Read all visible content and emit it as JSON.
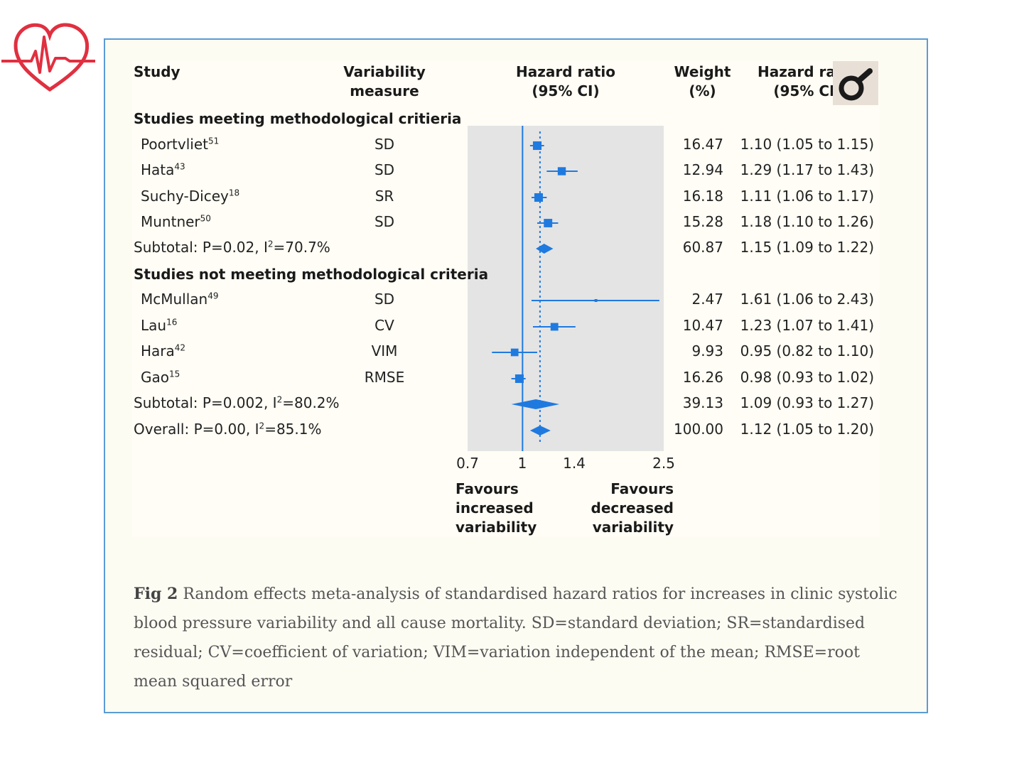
{
  "header": {
    "study": "Study",
    "measure_1": "Variability",
    "measure_2": "measure",
    "hr_1": "Hazard ratio",
    "hr_2": "(95% CI)",
    "weight_1": "Weight",
    "weight_2": "(%)",
    "hrtext_1": "Hazard ratio",
    "hrtext_2": "(95% CI)"
  },
  "sections": [
    {
      "title": "Studies meeting methodological critieria"
    },
    {
      "title": "Studies not meeting methodological criteria"
    }
  ],
  "rows": [
    {
      "name": "Poortvliet",
      "sup": "51",
      "measure": "SD",
      "weight": "16.47",
      "hrtext": "1.10 (1.05 to 1.15)"
    },
    {
      "name": "Hata",
      "sup": "43",
      "measure": "SD",
      "weight": "12.94",
      "hrtext": "1.29 (1.17 to 1.43)"
    },
    {
      "name": "Suchy-Dicey",
      "sup": "18",
      "measure": "SR",
      "weight": "16.18",
      "hrtext": "1.11 (1.06 to 1.17)"
    },
    {
      "name": "Muntner",
      "sup": "50",
      "measure": "SD",
      "weight": "15.28",
      "hrtext": "1.18 (1.10 to 1.26)"
    },
    {
      "name": "Subtotal: P=0.02, I",
      "sup": "2",
      "tail": "=70.7%",
      "measure": "",
      "weight": "60.87",
      "hrtext": "1.15 (1.09 to 1.22)"
    },
    {
      "name": "McMullan",
      "sup": "49",
      "measure": "SD",
      "weight": "2.47",
      "hrtext": "1.61 (1.06 to 2.43)"
    },
    {
      "name": "Lau",
      "sup": "16",
      "measure": "CV",
      "weight": "10.47",
      "hrtext": "1.23 (1.07 to 1.41)"
    },
    {
      "name": "Hara",
      "sup": "42",
      "measure": "VIM",
      "weight": "9.93",
      "hrtext": "0.95 (0.82 to 1.10)"
    },
    {
      "name": "Gao",
      "sup": "15",
      "measure": "RMSE",
      "weight": "16.26",
      "hrtext": "0.98 (0.93 to 1.02)"
    },
    {
      "name": "Subtotal: P=0.002, I",
      "sup": "2",
      "tail": "=80.2%",
      "measure": "",
      "weight": "39.13",
      "hrtext": "1.09 (0.93 to 1.27)"
    },
    {
      "name": "Overall: P=0.00, I",
      "sup": "2",
      "tail": "=85.1%",
      "measure": "",
      "weight": "100.00",
      "hrtext": "1.12 (1.05 to 1.20)"
    }
  ],
  "axis": {
    "ticks": [
      "0.7",
      "1",
      "1.4",
      "2.5"
    ],
    "left_1": "Favours",
    "left_2": "increased",
    "left_3": "variability",
    "right_1": "Favours",
    "right_2": "decreased",
    "right_3": "variability"
  },
  "caption": {
    "fig": "Fig 2",
    "text": "Random effects meta-analysis of standardised hazard ratios for increases in clinic systolic blood pressure variability and all cause mortality. SD=standard deviation; SR=standardised residual; CV=coefficient of variation; VIM=variation independent of the mean; RMSE=root mean squared error"
  },
  "colors": {
    "accent": "#1f7ae0",
    "panel": "#e4e4e4",
    "logo": "#e03040"
  },
  "chart_data": {
    "type": "forest",
    "xlim": [
      0.7,
      2.5
    ],
    "xscale": "log",
    "reference_line": 1,
    "overall_line": 1.12,
    "studies": [
      {
        "label": "Poortvliet",
        "hr": 1.1,
        "lo": 1.05,
        "hi": 1.15,
        "weight": 16.47,
        "kind": "study"
      },
      {
        "label": "Hata",
        "hr": 1.29,
        "lo": 1.17,
        "hi": 1.43,
        "weight": 12.94,
        "kind": "study"
      },
      {
        "label": "Suchy-Dicey",
        "hr": 1.11,
        "lo": 1.06,
        "hi": 1.17,
        "weight": 16.18,
        "kind": "study"
      },
      {
        "label": "Muntner",
        "hr": 1.18,
        "lo": 1.1,
        "hi": 1.26,
        "weight": 15.28,
        "kind": "study"
      },
      {
        "label": "Subtotal",
        "hr": 1.15,
        "lo": 1.09,
        "hi": 1.22,
        "weight": 60.87,
        "kind": "subtotal"
      },
      {
        "label": "McMullan",
        "hr": 1.61,
        "lo": 1.06,
        "hi": 2.43,
        "weight": 2.47,
        "kind": "study"
      },
      {
        "label": "Lau",
        "hr": 1.23,
        "lo": 1.07,
        "hi": 1.41,
        "weight": 10.47,
        "kind": "study"
      },
      {
        "label": "Hara",
        "hr": 0.95,
        "lo": 0.82,
        "hi": 1.1,
        "weight": 9.93,
        "kind": "study"
      },
      {
        "label": "Gao",
        "hr": 0.98,
        "lo": 0.93,
        "hi": 1.02,
        "weight": 16.26,
        "kind": "study"
      },
      {
        "label": "Subtotal",
        "hr": 1.09,
        "lo": 0.93,
        "hi": 1.27,
        "weight": 39.13,
        "kind": "subtotal"
      },
      {
        "label": "Overall",
        "hr": 1.12,
        "lo": 1.05,
        "hi": 1.2,
        "weight": 100.0,
        "kind": "overall"
      }
    ]
  }
}
